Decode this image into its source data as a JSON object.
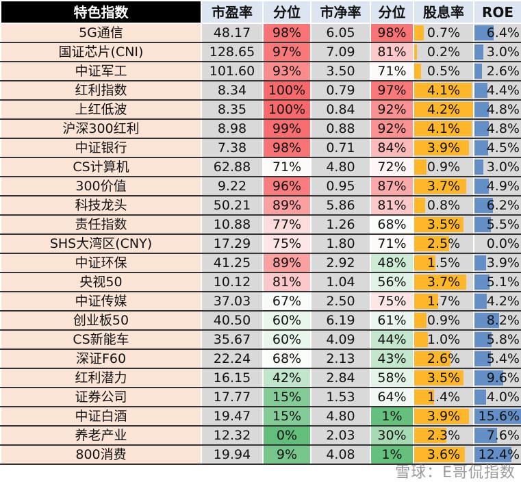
{
  "headers": [
    "特色指数",
    "市盈率",
    "分位",
    "市净率",
    "分位",
    "股息率",
    "ROE"
  ],
  "colors": {
    "name_bg": "#fce4d6",
    "header_bg": "#dde5f3",
    "num_bg": "#d9d9d9",
    "high_pct": "#f8696b",
    "mid_pct": "#ffffff",
    "low_pct": "#63be7b",
    "dividend_bar": "#ffb628",
    "roe_bar": "#638ec6"
  },
  "rows": [
    [
      "5G通信",
      "48.17",
      "98%",
      "6.05",
      "98%",
      "0.7%",
      "6.4%"
    ],
    [
      "国证芯片(CNI)",
      "128.65",
      "97%",
      "7.09",
      "81%",
      "0.2%",
      "3.0%"
    ],
    [
      "中证军工",
      "101.60",
      "93%",
      "3.50",
      "71%",
      "0.5%",
      "2.6%"
    ],
    [
      "红利指数",
      "8.34",
      "100%",
      "0.79",
      "97%",
      "4.1%",
      "4.4%"
    ],
    [
      "上红低波",
      "8.35",
      "100%",
      "0.84",
      "92%",
      "4.2%",
      "4.8%"
    ],
    [
      "沪深300红利",
      "8.98",
      "99%",
      "0.88",
      "92%",
      "4.1%",
      "4.8%"
    ],
    [
      "中证银行",
      "7.38",
      "98%",
      "0.71",
      "84%",
      "3.9%",
      "4.5%"
    ],
    [
      "CS计算机",
      "62.88",
      "71%",
      "4.80",
      "72%",
      "0.9%",
      "3.0%"
    ],
    [
      "300价值",
      "9.22",
      "96%",
      "0.95",
      "87%",
      "3.7%",
      "4.9%"
    ],
    [
      "科技龙头",
      "50.21",
      "89%",
      "5.86",
      "81%",
      "0.8%",
      "6.2%"
    ],
    [
      "责任指数",
      "10.88",
      "77%",
      "1.26",
      "68%",
      "3.5%",
      "5.5%"
    ],
    [
      "SHS大湾区(CNY)",
      "17.29",
      "75%",
      "1.80",
      "71%",
      "2.5%",
      "0.0%"
    ],
    [
      "中证环保",
      "41.25",
      "89%",
      "2.92",
      "48%",
      "1.5%",
      "3.9%"
    ],
    [
      "央视50",
      "10.12",
      "81%",
      "1.04",
      "56%",
      "3.7%",
      "5.1%"
    ],
    [
      "中证传媒",
      "37.03",
      "67%",
      "2.50",
      "75%",
      "1.7%",
      "4.2%"
    ],
    [
      "创业板50",
      "40.50",
      "60%",
      "6.19",
      "61%",
      "0.9%",
      "8.2%"
    ],
    [
      "CS新能车",
      "35.67",
      "60%",
      "4.09",
      "44%",
      "1.0%",
      "5.8%"
    ],
    [
      "深证F60",
      "22.24",
      "68%",
      "2.13",
      "43%",
      "2.6%",
      "5.4%"
    ],
    [
      "红利潜力",
      "16.15",
      "42%",
      "2.84",
      "58%",
      "3.5%",
      "9.6%"
    ],
    [
      "证券公司",
      "17.77",
      "15%",
      "1.53",
      "64%",
      "1.4%",
      "4.0%"
    ],
    [
      "中证白酒",
      "19.47",
      "15%",
      "4.80",
      "1%",
      "3.9%",
      "15.6%"
    ],
    [
      "养老产业",
      "12.32",
      "0%",
      "2.03",
      "30%",
      "2.3%",
      "7.6%"
    ],
    [
      "800消费",
      "19.94",
      "9%",
      "4.08",
      "1%",
      "3.6%",
      "12.4%"
    ]
  ],
  "watermark": "雪球：E哥侃指数"
}
